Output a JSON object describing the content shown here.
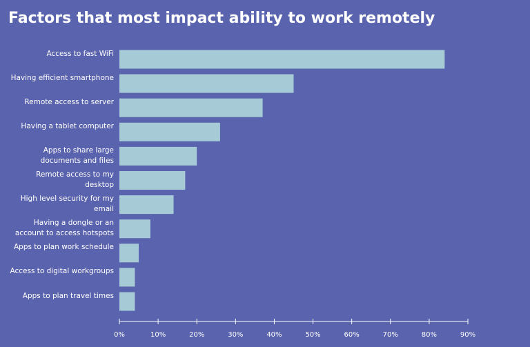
{
  "chart_data": {
    "type": "bar",
    "orientation": "horizontal",
    "title": "Factors that most impact ability to work remotely",
    "categories": [
      "Access to fast WiFi",
      "Having efficient smartphone",
      "Remote access to server",
      "Having a tablet computer",
      "Apps to share large documents and files",
      "Remote access to my desktop",
      "High level security for my email",
      "Having a dongle or an account to access hotspots",
      "Apps to plan work schedule",
      "Access to digital workgroups",
      "Apps to plan travel times"
    ],
    "values": [
      84,
      45,
      37,
      26,
      20,
      17,
      14,
      8,
      5,
      4,
      4
    ],
    "color": "#a7cbd6",
    "xlim": [
      0,
      90
    ],
    "xticks": [
      {
        "value": 0,
        "label": "0%"
      },
      {
        "value": 10,
        "label": "10%"
      },
      {
        "value": 20,
        "label": "20%"
      },
      {
        "value": 30,
        "label": "30%"
      },
      {
        "value": 40,
        "label": "40%"
      },
      {
        "value": 50,
        "label": "50%"
      },
      {
        "value": 60,
        "label": "60%"
      },
      {
        "value": 70,
        "label": "70%"
      },
      {
        "value": 80,
        "label": "80%"
      },
      {
        "value": 90,
        "label": "90%"
      }
    ],
    "grid": false
  }
}
